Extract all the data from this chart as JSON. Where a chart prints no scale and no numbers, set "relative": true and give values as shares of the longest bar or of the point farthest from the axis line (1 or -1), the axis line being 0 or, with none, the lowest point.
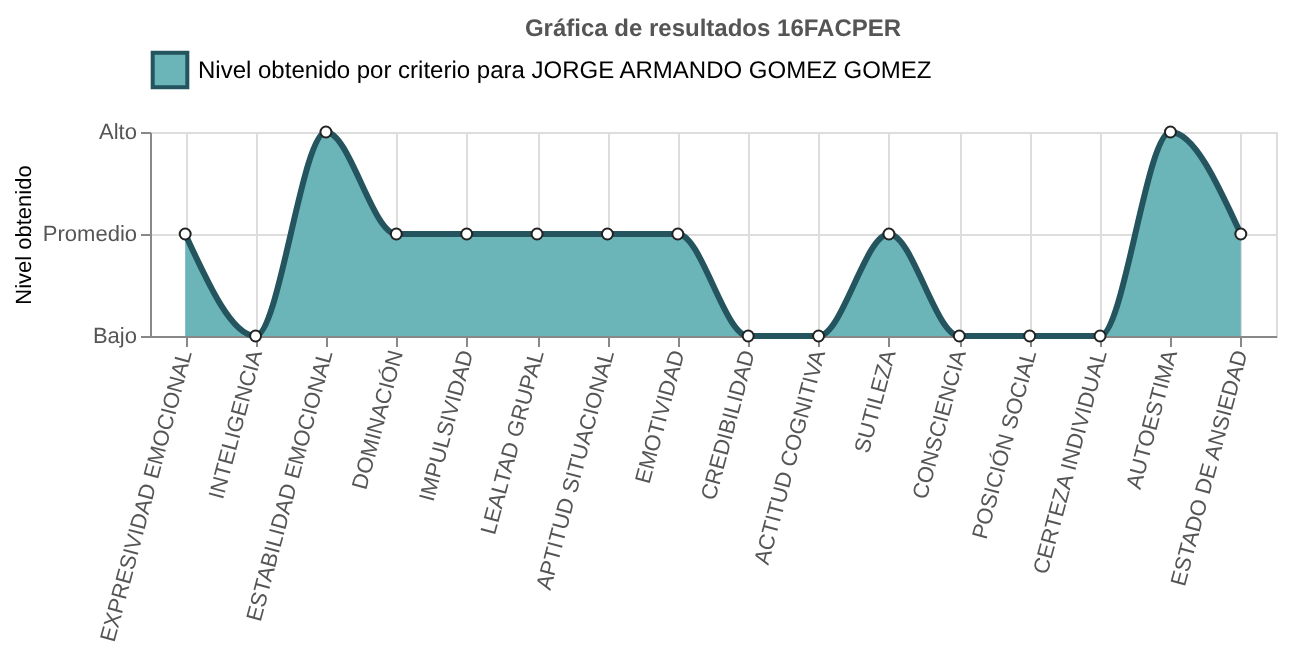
{
  "chart_data": {
    "type": "area",
    "title": "Gráfica de resultados 16FACPER",
    "ylabel": "Nivel obtenido",
    "categories": [
      "EXPRESIVIDAD EMOCIONAL",
      "INTELIGENCIA",
      "ESTABILIDAD EMOCIONAL",
      "DOMINACIÓN",
      "IMPULSIVIDAD",
      "LEALTAD GRUPAL",
      "APTITUD SITUACIONAL",
      "EMOTIVIDAD",
      "CREDIBILIDAD",
      "ACTITUD COGNITIVA",
      "SUTILEZA",
      "CONSCIENCIA",
      "POSICIÓN SOCIAL",
      "CERTEZA INDIVIDUAL",
      "AUTOESTIMA",
      "ESTADO DE ANSIEDAD"
    ],
    "series": [
      {
        "name": "Nivel obtenido por criterio para JORGE ARMANDO GOMEZ GOMEZ",
        "color": "#6bb4b7",
        "values": [
          0.5,
          0,
          1,
          0.5,
          0.5,
          0.5,
          0.5,
          0.5,
          0,
          0,
          0.5,
          0,
          0,
          0,
          1,
          0.5
        ]
      }
    ],
    "relative": true,
    "annotations": [
      "Alto",
      "Promedio",
      "Bajo"
    ],
    "grid": true,
    "legend": "top",
    "marker": "circle"
  }
}
